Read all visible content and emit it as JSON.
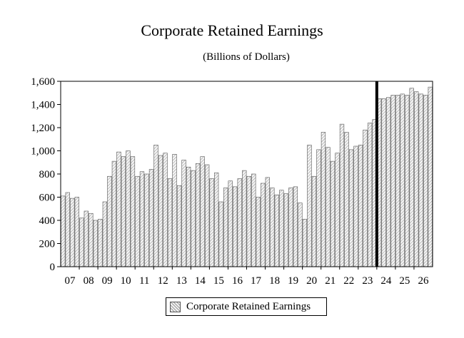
{
  "chart_data": {
    "type": "bar",
    "title": "Corporate Retained Earnings",
    "subtitle": "(Billions of Dollars)",
    "xlabel": "",
    "ylabel": "",
    "ylim": [
      0,
      1600
    ],
    "yticks": [
      0,
      200,
      400,
      600,
      800,
      1000,
      1200,
      1400,
      1600
    ],
    "ytick_labels": [
      "0",
      "200",
      "400",
      "600",
      "800",
      "1,000",
      "1,200",
      "1,400",
      "1,600"
    ],
    "xtick_labels": [
      "07",
      "08",
      "09",
      "10",
      "11",
      "12",
      "13",
      "14",
      "15",
      "16",
      "17",
      "18",
      "19",
      "20",
      "21",
      "22",
      "23",
      "24",
      "25",
      "26"
    ],
    "grid": false,
    "legend": {
      "position": "bottom",
      "entries": [
        "Corporate Retained Earnings"
      ]
    },
    "forecast_divider_after_index": 67,
    "series": [
      {
        "name": "Corporate Retained Earnings",
        "values": [
          610,
          640,
          590,
          600,
          420,
          480,
          460,
          400,
          410,
          560,
          780,
          910,
          990,
          950,
          1000,
          950,
          780,
          820,
          800,
          840,
          1050,
          960,
          980,
          760,
          970,
          700,
          920,
          860,
          830,
          890,
          950,
          880,
          760,
          810,
          560,
          680,
          740,
          690,
          760,
          830,
          780,
          800,
          600,
          720,
          770,
          680,
          620,
          660,
          630,
          680,
          690,
          550,
          410,
          1050,
          780,
          1010,
          1160,
          1030,
          910,
          980,
          1230,
          1160,
          1010,
          1040,
          1050,
          1180,
          1240,
          1270,
          1450,
          1450,
          1460,
          1480,
          1480,
          1490,
          1480,
          1540,
          1510,
          1490,
          1480,
          1550
        ]
      }
    ]
  }
}
